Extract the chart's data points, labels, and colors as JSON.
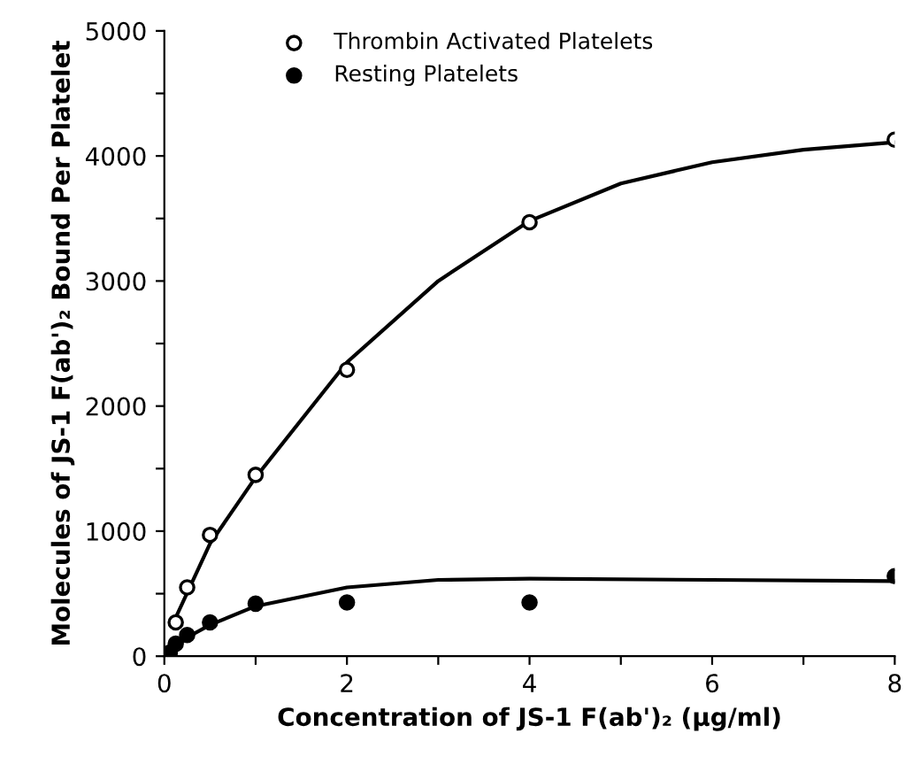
{
  "chart_data": {
    "type": "scatter",
    "xlabel": "Concentration of JS-1 F(ab')₂ (µg/ml)",
    "ylabel": "Molecules of JS-1 F(ab')₂ Bound Per Platelet",
    "xlim": [
      0,
      8
    ],
    "ylim": [
      0,
      5000
    ],
    "xticks": [
      0,
      {
        "value": 1,
        "label": null
      },
      2,
      {
        "value": 3,
        "label": null
      },
      4,
      {
        "value": 5,
        "label": null
      },
      6,
      {
        "value": 7,
        "label": null
      },
      8
    ],
    "yticks": [
      0,
      {
        "value": 500,
        "label": null
      },
      1000,
      {
        "value": 1500,
        "label": null
      },
      2000,
      {
        "value": 2500,
        "label": null
      },
      3000,
      {
        "value": 3500,
        "label": null
      },
      4000,
      {
        "value": 4500,
        "label": null
      },
      5000
    ],
    "grid": false,
    "legend": "top left",
    "series": [
      {
        "name": "Thrombin Activated Platelets",
        "marker": "circle",
        "color": "#000000",
        "x": [
          0.125,
          0.25,
          0.5,
          1,
          2,
          4,
          8
        ],
        "values": [
          270,
          550,
          970,
          1450,
          2290,
          3470,
          4130
        ]
      },
      {
        "name": "Resting Platelets",
        "marker": "circle",
        "color": "#000000",
        "x": [
          0.06,
          0.125,
          0.25,
          0.5,
          1,
          2,
          4,
          8
        ],
        "values": [
          30,
          100,
          170,
          270,
          420,
          430,
          430,
          640
        ]
      },
      {
        "type": "line",
        "color": "#000000",
        "line_style": "solid",
        "marker": "none",
        "x": [
          0.1,
          0.5,
          1,
          2,
          3,
          4,
          5,
          6,
          7,
          8
        ],
        "values": [
          270,
          900,
          1430,
          2350,
          3000,
          3480,
          3780,
          3950,
          4050,
          4110
        ]
      },
      {
        "type": "line",
        "color": "#000000",
        "line_style": "solid",
        "marker": "none",
        "x": [
          0.06,
          0.25,
          0.5,
          1,
          2,
          3,
          4,
          6,
          8
        ],
        "values": [
          30,
          150,
          250,
          400,
          550,
          610,
          620,
          610,
          600
        ]
      }
    ]
  }
}
